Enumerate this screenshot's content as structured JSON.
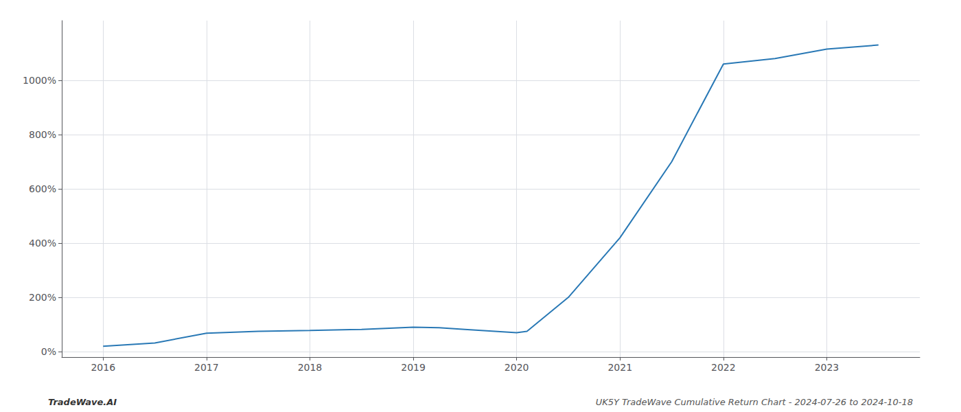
{
  "chart_data": {
    "type": "line",
    "annotations": [
      "TradeWave.AI",
      "UK5Y TradeWave Cumulative Return Chart - 2024-07-26 to 2024-10-18"
    ],
    "x": [
      2016.0,
      2016.5,
      2017.0,
      2017.5,
      2018.0,
      2018.5,
      2019.0,
      2019.25,
      2019.5,
      2020.0,
      2020.1,
      2020.5,
      2021.0,
      2021.5,
      2022.0,
      2022.25,
      2022.5,
      2023.0,
      2023.5
    ],
    "values": [
      20,
      32,
      68,
      75,
      78,
      82,
      90,
      88,
      82,
      70,
      75,
      200,
      420,
      700,
      1060,
      1070,
      1080,
      1115,
      1130
    ],
    "color": "#2878b5",
    "xlim": [
      2015.6,
      2023.9
    ],
    "xticks": [
      2016,
      2017,
      2018,
      2019,
      2020,
      2021,
      2022,
      2023
    ],
    "ylim": [
      -20,
      1220
    ],
    "yticks": [
      {
        "value": 0,
        "label": "0%"
      },
      {
        "value": 200,
        "label": "200%"
      },
      {
        "value": 400,
        "label": "400%"
      },
      {
        "value": 600,
        "label": "600%"
      },
      {
        "value": 800,
        "label": "800%"
      },
      {
        "value": 1000,
        "label": "1000%"
      }
    ],
    "grid": true
  }
}
